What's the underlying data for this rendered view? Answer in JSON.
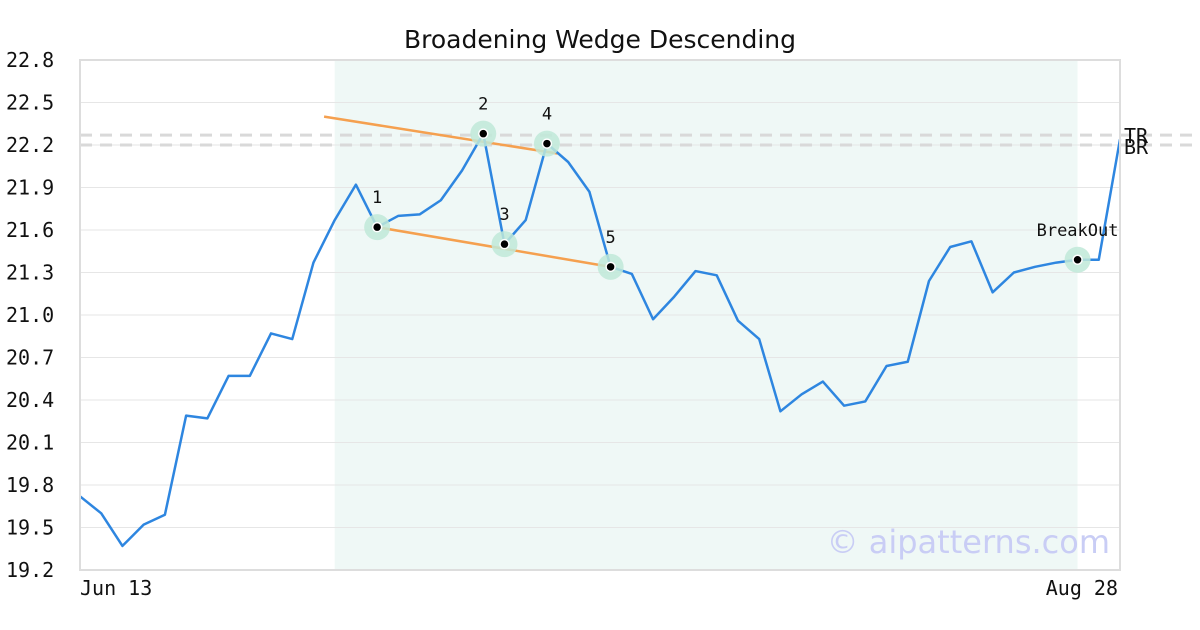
{
  "chart_data": {
    "type": "line",
    "title": "Broadening Wedge Descending",
    "ylim": [
      19.2,
      22.8
    ],
    "yticks": [
      "19.2",
      "19.5",
      "19.8",
      "20.1",
      "20.4",
      "20.7",
      "21.0",
      "21.3",
      "21.6",
      "21.9",
      "22.2",
      "22.5",
      "22.8"
    ],
    "x_labels": [
      "Jun 13",
      "Aug 28"
    ],
    "colors": {
      "price": "#2e86e0",
      "trend": "#f5a04f",
      "highlight": "#e2f3ef",
      "marker_halo": "#bfe9d8",
      "grid": "#e6e6e6",
      "reference": "#d9d9d9",
      "frame": "#dddddd"
    },
    "series": [
      {
        "values": [
          19.72,
          19.6,
          19.37,
          19.52,
          19.59,
          20.29,
          20.27,
          20.57,
          20.57,
          20.87,
          20.83,
          21.37,
          21.67,
          21.92,
          21.62,
          21.7,
          21.71,
          21.81,
          22.02,
          22.28,
          21.5,
          21.67,
          22.21,
          22.08,
          21.87,
          21.34,
          21.29,
          20.97,
          21.13,
          21.31,
          21.28,
          20.96,
          20.83,
          20.32,
          20.44,
          20.53,
          20.36,
          20.39,
          20.64,
          20.67,
          21.24,
          21.48,
          21.52,
          21.16,
          21.3,
          21.34,
          21.37,
          21.39,
          21.39,
          22.24
        ]
      }
    ],
    "highlight_range": [
      12,
      47
    ],
    "trend_lines": [
      {
        "from": [
          11.5,
          22.4
        ],
        "to": [
          22.5,
          22.14
        ]
      },
      {
        "from": [
          14,
          21.62
        ],
        "to": [
          25,
          21.34
        ]
      }
    ],
    "points": [
      {
        "label": "1",
        "index": 14,
        "value": 21.62
      },
      {
        "label": "2",
        "index": 19,
        "value": 22.28
      },
      {
        "label": "3",
        "index": 20,
        "value": 21.5
      },
      {
        "label": "4",
        "index": 22,
        "value": 22.21
      },
      {
        "label": "5",
        "index": 25,
        "value": 21.34
      },
      {
        "label": "BreakOut",
        "index": 47,
        "value": 21.39
      }
    ],
    "reference_lines": [
      {
        "label": "TR",
        "value": 22.27
      },
      {
        "label": "BR",
        "value": 22.2
      }
    ],
    "watermark": "© aipatterns.com"
  }
}
